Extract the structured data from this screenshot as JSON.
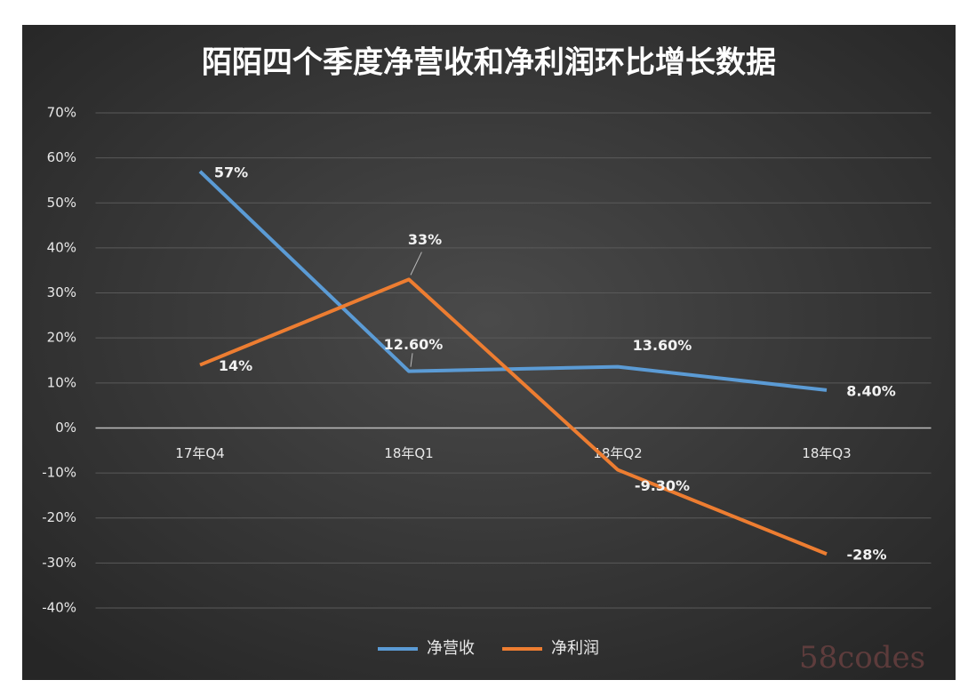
{
  "chart_data": {
    "type": "line",
    "title": "陌陌四个季度净营收和净利润环比增长数据",
    "categories": [
      "17年Q4",
      "18年Q1",
      "18年Q2",
      "18年Q3"
    ],
    "series": [
      {
        "name": "净营收",
        "color": "#5b9bd5",
        "values": [
          57,
          12.6,
          13.6,
          8.4
        ],
        "value_labels": [
          "57%",
          "12.60%",
          "13.60%",
          "8.40%"
        ]
      },
      {
        "name": "净利润",
        "color": "#ed7d31",
        "values": [
          14,
          33,
          -9.3,
          -28
        ],
        "value_labels": [
          "14%",
          "33%",
          "-9.30%",
          "-28%"
        ]
      }
    ],
    "ylim": [
      -40,
      70
    ],
    "yticks": [
      {
        "value": -40,
        "label": "-40%"
      },
      {
        "value": -30,
        "label": "-30%"
      },
      {
        "value": -20,
        "label": "-20%"
      },
      {
        "value": -10,
        "label": "-10%"
      },
      {
        "value": 0,
        "label": "0%"
      },
      {
        "value": 10,
        "label": "10%"
      },
      {
        "value": 20,
        "label": "20%"
      },
      {
        "value": 30,
        "label": "30%"
      },
      {
        "value": 40,
        "label": "40%"
      },
      {
        "value": 50,
        "label": "50%"
      },
      {
        "value": 60,
        "label": "60%"
      },
      {
        "value": 70,
        "label": "70%"
      }
    ],
    "grid": true,
    "legend": "bottom",
    "watermark": "58codes"
  }
}
